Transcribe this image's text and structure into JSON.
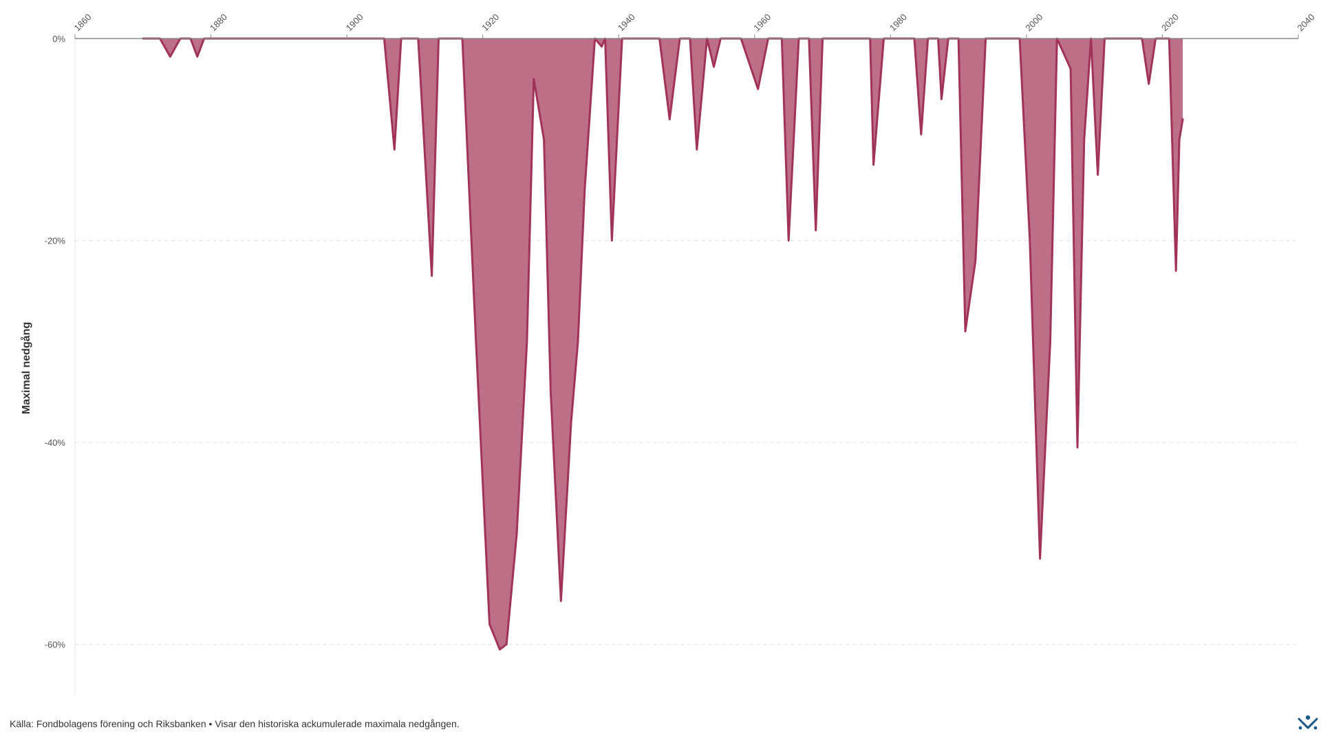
{
  "chart_data": {
    "type": "area",
    "ylabel": "Maximal nedgång",
    "x_axis": {
      "min": 1860,
      "max": 2040,
      "ticks": [
        1860,
        1880,
        1900,
        1920,
        1940,
        1960,
        1980,
        2000,
        2020,
        2040
      ],
      "tick_labels": [
        "1860",
        "1880",
        "1900",
        "1920",
        "1940",
        "1960",
        "1980",
        "2000",
        "2020",
        "2040"
      ]
    },
    "y_axis": {
      "min": -65,
      "max": 0,
      "ticks": [
        0,
        -20,
        -40,
        -60
      ],
      "tick_labels": [
        "0%",
        "-20%",
        "-40%",
        "-60%"
      ],
      "unit": "%"
    },
    "grid": true,
    "series": [
      {
        "values_unit": "percent",
        "x": [
          1870,
          1872.5,
          1874,
          1875.5,
          1877,
          1878,
          1879,
          1905.5,
          1907,
          1908,
          1910.5,
          1912.5,
          1913.5,
          1915.5,
          1917,
          1919,
          1921,
          1922.5,
          1923.5,
          1925,
          1926.5,
          1927.5,
          1929,
          1930,
          1931.5,
          1933,
          1934,
          1935,
          1936.5,
          1937.5,
          1938,
          1939,
          1940.5,
          1946,
          1947.5,
          1949,
          1950.5,
          1951.5,
          1953,
          1954,
          1955,
          1958,
          1960.5,
          1962,
          1964,
          1965,
          1966.5,
          1968,
          1969,
          1970,
          1977,
          1977.5,
          1979,
          1983.5,
          1984.5,
          1985.5,
          1987,
          1987.5,
          1988.5,
          1990,
          1991,
          1992.5,
          1994,
          1999,
          2000.5,
          2002,
          2003.5,
          2004.5,
          2006.5,
          2007.5,
          2008.5,
          2009.5,
          2010.5,
          2011.5,
          2017,
          2018,
          2019,
          2021,
          2022,
          2022.5,
          2023
        ],
        "values": [
          0,
          0,
          -1.8,
          0,
          0,
          -1.8,
          0,
          0,
          -11,
          0,
          0,
          -23.5,
          0,
          0,
          0,
          -30,
          -58,
          -60.5,
          -60,
          -49,
          -30,
          -4,
          -10,
          -35,
          -55.7,
          -38,
          -30,
          -15,
          0,
          -0.8,
          0,
          -20,
          0,
          0,
          -8,
          0,
          0,
          -11,
          0,
          -2.8,
          0,
          0,
          -5,
          0,
          0,
          -20,
          0,
          0,
          -19,
          0,
          0,
          -12.5,
          0,
          0,
          -9.5,
          0,
          0,
          -6,
          0,
          0,
          -29,
          -22,
          0,
          0,
          -20,
          -51.5,
          -30,
          0,
          -3,
          -40.5,
          -10,
          0,
          -13.5,
          0,
          0,
          -4.5,
          0,
          0,
          -23,
          -10,
          -8
        ]
      }
    ],
    "fill_color": "#bc6f86",
    "line_color": "#a23358"
  },
  "footer": {
    "source_text": "Källa: Fondbolagens förening och Riksbanken • Visar den historiska ackumulerade maximala nedgången."
  },
  "logo": {
    "icon": "brand-logo-icon",
    "color": "#1a5a8a"
  }
}
